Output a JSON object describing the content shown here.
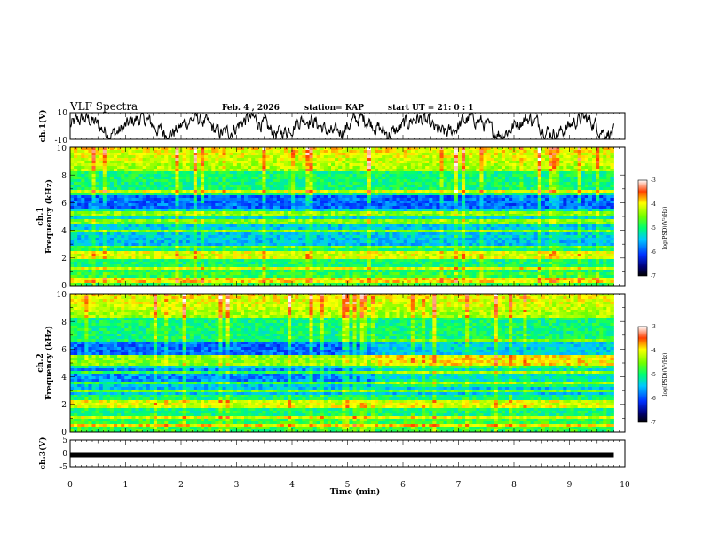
{
  "header": {
    "title": "VLF Spectra",
    "date": "Feb. 4 , 2026",
    "station": "station= KAP",
    "start": "start UT =  21: 0  : 1"
  },
  "chart_data": [
    {
      "id": "ch1-waveform",
      "type": "line",
      "ylabel": "ch.1(V)",
      "ylim": [
        -10,
        10
      ],
      "yticks": [
        "10",
        "-10"
      ],
      "xlim": [
        0,
        10
      ],
      "data_end_min": 9.8,
      "series_color": "#000000"
    },
    {
      "id": "ch1-spectrogram",
      "type": "heatmap",
      "ylabel_top": "ch.1",
      "ylabel": "Frequency (kHz)",
      "ylim": [
        0,
        10
      ],
      "yticks": [
        "0",
        "2",
        "4",
        "6",
        "8",
        "10"
      ],
      "xlim": [
        0,
        10
      ],
      "data_end_min": 9.8,
      "colorbar": {
        "label": "log(PSD)(V²/Hz)",
        "range": [
          -7,
          -3
        ],
        "ticks": [
          "-3",
          "-4",
          "-5",
          "-6",
          "-7"
        ]
      }
    },
    {
      "id": "ch2-spectrogram",
      "type": "heatmap",
      "ylabel_top": "ch.2",
      "ylabel": "Frequency (kHz)",
      "ylim": [
        0,
        10
      ],
      "yticks": [
        "0",
        "2",
        "4",
        "6",
        "8",
        "10"
      ],
      "xlim": [
        0,
        10
      ],
      "data_end_min": 9.8,
      "colorbar": {
        "label": "log(PSD)(V²/Hz)",
        "range": [
          -7,
          -3
        ],
        "ticks": [
          "-3",
          "-4",
          "-5",
          "-6",
          "-7"
        ]
      }
    },
    {
      "id": "ch3-waveform",
      "type": "line",
      "ylabel": "ch.3(V)",
      "ylim": [
        -5,
        5
      ],
      "yticks": [
        "5",
        "0",
        "-5"
      ],
      "xlim": [
        0,
        10
      ],
      "xticks": [
        "0",
        "1",
        "2",
        "3",
        "4",
        "5",
        "6",
        "7",
        "8",
        "9",
        "10"
      ],
      "xlabel": "Time (min)",
      "level": -0.5,
      "series_color": "#000000"
    }
  ]
}
